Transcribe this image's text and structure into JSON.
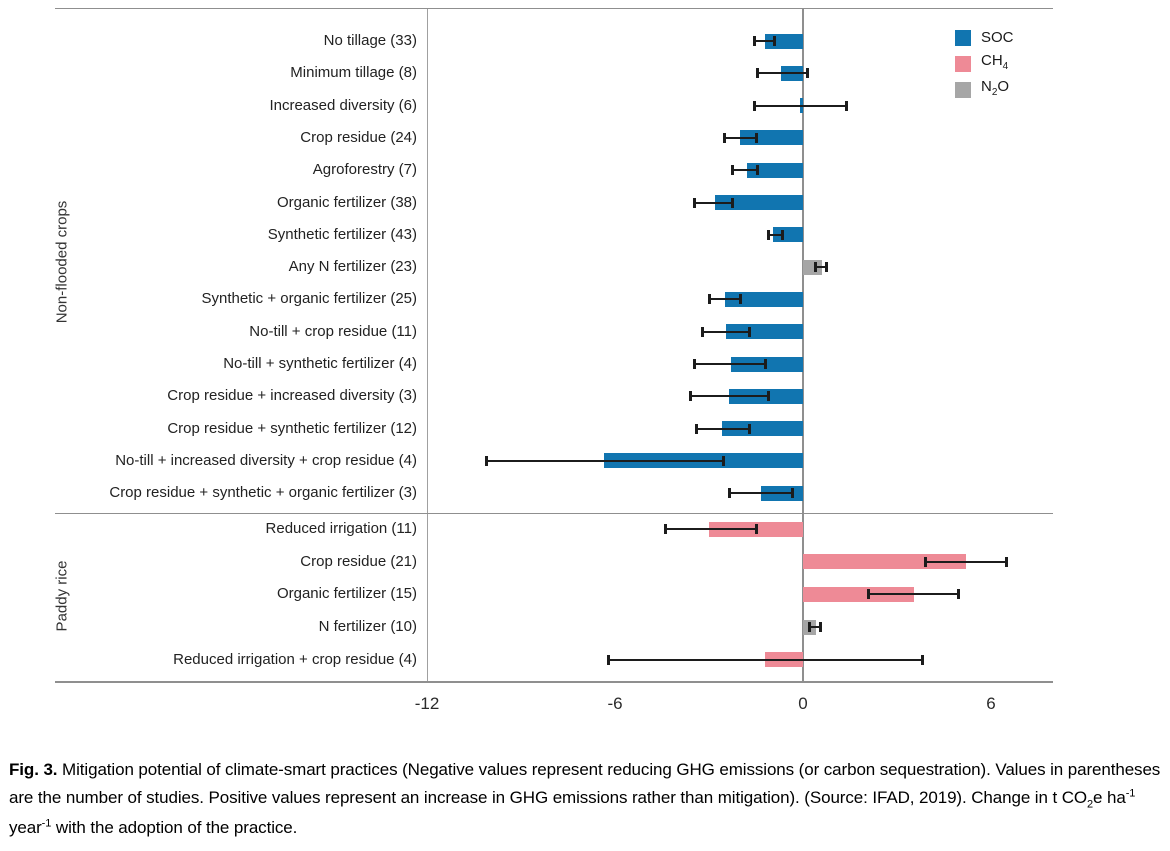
{
  "colors": {
    "soc": "#1175b0",
    "ch4": "#ee8a96",
    "n2o": "#a6a6a6",
    "error_bar": "#1c1c1c",
    "axis": "#8f8f8f"
  },
  "legend": {
    "items": [
      {
        "key": "soc",
        "segments": [
          {
            "text": "SOC"
          }
        ]
      },
      {
        "key": "ch4",
        "segments": [
          {
            "text": "CH"
          },
          {
            "text": "4",
            "script": "sub"
          }
        ]
      },
      {
        "key": "n2o",
        "segments": [
          {
            "text": "N"
          },
          {
            "text": "2",
            "script": "sub"
          },
          {
            "text": "O"
          }
        ]
      }
    ]
  },
  "chart_data": {
    "type": "bar",
    "orientation": "horizontal",
    "unit": "t CO2e ha-1 year-1",
    "xlim": [
      -12,
      8
    ],
    "ticks": [
      {
        "label": "-12",
        "value": -12
      },
      {
        "label": "-6",
        "value": -6
      },
      {
        "label": "0",
        "value": 0
      },
      {
        "label": "6",
        "value": 6
      }
    ],
    "series_legend": [
      "SOC",
      "CH4",
      "N2O"
    ],
    "groups": [
      {
        "name": "Non-flooded crops",
        "rows": [
          {
            "label": "No tillage (33)",
            "practice": "No tillage",
            "studies": 33,
            "gas": "SOC",
            "value": -1.2,
            "ci": [
              -1.55,
              -0.9
            ]
          },
          {
            "label": "Minimum tillage (8)",
            "practice": "Minimum tillage",
            "studies": 8,
            "gas": "SOC",
            "value": -0.7,
            "ci": [
              -1.45,
              0.15
            ]
          },
          {
            "label": "Increased diversity (6)",
            "practice": "Increased diversity",
            "studies": 6,
            "gas": "SOC",
            "value": -0.1,
            "ci": [
              -1.55,
              1.4
            ]
          },
          {
            "label": "Crop residue (24)",
            "practice": "Crop residue",
            "studies": 24,
            "gas": "SOC",
            "value": -2.0,
            "ci": [
              -2.5,
              -1.5
            ]
          },
          {
            "label": "Agroforestry (7)",
            "practice": "Agroforestry",
            "studies": 7,
            "gas": "SOC",
            "value": -1.8,
            "ci": [
              -2.25,
              -1.45
            ]
          },
          {
            "label": "Organic fertilizer (38)",
            "practice": "Organic fertilizer",
            "studies": 38,
            "gas": "SOC",
            "value": -2.8,
            "ci": [
              -3.45,
              -2.25
            ]
          },
          {
            "label": "Synthetic fertilizer (43)",
            "practice": "Synthetic fertilizer",
            "studies": 43,
            "gas": "SOC",
            "value": -0.95,
            "ci": [
              -1.1,
              -0.65
            ]
          },
          {
            "label": "Any N fertilizer (23)",
            "practice": "Any N fertilizer",
            "studies": 23,
            "gas": "N2O",
            "value": 0.6,
            "ci": [
              0.4,
              0.75
            ]
          },
          {
            "label": "Synthetic + organic fertilizer (25)",
            "practice": "Synthetic + organic fertilizer",
            "studies": 25,
            "gas": "SOC",
            "value": -2.5,
            "ci": [
              -3.0,
              -2.0
            ]
          },
          {
            "label": "No-till + crop residue (11)",
            "practice": "No-till + crop residue",
            "studies": 11,
            "gas": "SOC",
            "value": -2.45,
            "ci": [
              -3.2,
              -1.7
            ]
          },
          {
            "label": "No-till + synthetic fertilizer (4)",
            "practice": "No-till + synthetic fertilizer",
            "studies": 4,
            "gas": "SOC",
            "value": -2.3,
            "ci": [
              -3.45,
              -1.2
            ]
          },
          {
            "label": "Crop residue + increased diversity (3)",
            "practice": "Crop residue + increased diversity",
            "studies": 3,
            "gas": "SOC",
            "value": -2.35,
            "ci": [
              -3.6,
              -1.1
            ]
          },
          {
            "label": "Crop residue + synthetic fertilizer (12)",
            "practice": "Crop residue + synthetic fertilizer",
            "studies": 12,
            "gas": "SOC",
            "value": -2.6,
            "ci": [
              -3.4,
              -1.7
            ]
          },
          {
            "label": "No-till + increased diversity + crop residue (4)",
            "practice": "No-till + increased diversity + crop residue",
            "studies": 4,
            "gas": "SOC",
            "value": -6.35,
            "ci": [
              -10.1,
              -2.55
            ]
          },
          {
            "label": "Crop residue + synthetic + organic fertilizer (3)",
            "practice": "Crop residue + synthetic + organic fertilizer",
            "studies": 3,
            "gas": "SOC",
            "value": -1.35,
            "ci": [
              -2.35,
              -0.35
            ]
          }
        ]
      },
      {
        "name": "Paddy rice",
        "rows": [
          {
            "label": "Reduced irrigation (11)",
            "practice": "Reduced irrigation",
            "studies": 11,
            "gas": "CH4",
            "value": -3.0,
            "ci": [
              -4.4,
              -1.5
            ]
          },
          {
            "label": "Crop residue (21)",
            "practice": "Crop residue",
            "studies": 21,
            "gas": "CH4",
            "value": 5.2,
            "ci": [
              3.9,
              6.5
            ]
          },
          {
            "label": "Organic fertilizer (15)",
            "practice": "Organic fertilizer",
            "studies": 15,
            "gas": "CH4",
            "value": 3.55,
            "ci": [
              2.1,
              4.95
            ]
          },
          {
            "label": "N fertilizer (10)",
            "practice": "N fertilizer",
            "studies": 10,
            "gas": "N2O",
            "value": 0.4,
            "ci": [
              0.2,
              0.55
            ]
          },
          {
            "label": "Reduced irrigation + crop residue (4)",
            "practice": "Reduced irrigation + crop residue",
            "studies": 4,
            "gas": "CH4",
            "value": -1.2,
            "ci": [
              -6.2,
              3.8
            ]
          }
        ]
      }
    ]
  },
  "caption": {
    "segments": [
      {
        "text": "Fig. 3. ",
        "bold": true
      },
      {
        "text": "Mitigation potential of climate-smart practices (Negative values represent reducing GHG emissions (or carbon sequestration). Values in parentheses are the number of studies. Positive values represent an increase in GHG emissions rather than mitigation). (Source: IFAD, 2019). Change in t CO"
      },
      {
        "text": "2",
        "script": "sub"
      },
      {
        "text": "e ha"
      },
      {
        "text": "-1",
        "script": "sup"
      },
      {
        "text": " year"
      },
      {
        "text": "-1",
        "script": "sup"
      },
      {
        "text": " with the adoption of the practice."
      }
    ]
  }
}
